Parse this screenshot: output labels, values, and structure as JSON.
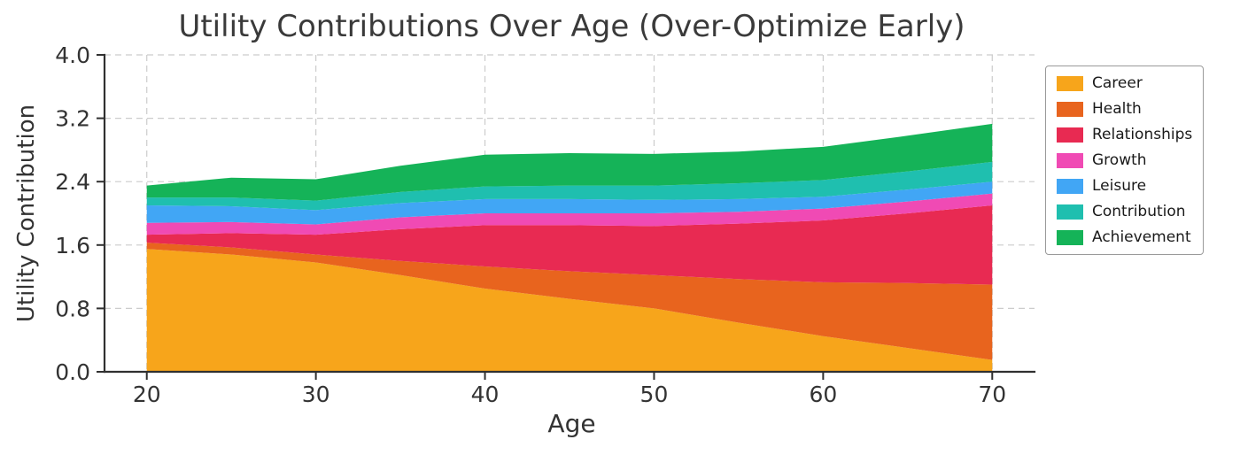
{
  "page": {
    "background": "#ffffff"
  },
  "chart_data": {
    "type": "area",
    "stacked": true,
    "title": "Utility Contributions Over Age (Over-Optimize Early)",
    "xlabel": "Age",
    "ylabel": "Utility Contribution",
    "grid": "dashed",
    "legend_position": "outside-right",
    "x": [
      20,
      25,
      30,
      35,
      40,
      45,
      50,
      55,
      60,
      65,
      70
    ],
    "xlim": [
      17.5,
      72.5
    ],
    "ylim": [
      0,
      4.0
    ],
    "xticks": [
      20,
      30,
      40,
      50,
      60,
      70
    ],
    "xtick_labels": [
      "20",
      "30",
      "40",
      "50",
      "60",
      "70"
    ],
    "yticks": [
      0,
      0.8,
      1.6,
      2.4,
      3.2,
      4.0
    ],
    "ytick_labels": [
      "0.0",
      "0.8",
      "1.6",
      "2.4",
      "3.2",
      "4.0"
    ],
    "series": [
      {
        "name": "Career",
        "color": "#F7A51B",
        "values": [
          1.55,
          1.48,
          1.38,
          1.22,
          1.05,
          0.92,
          0.8,
          0.62,
          0.45,
          0.3,
          0.15
        ]
      },
      {
        "name": "Health",
        "color": "#E8641E",
        "values": [
          0.08,
          0.09,
          0.1,
          0.18,
          0.28,
          0.35,
          0.42,
          0.55,
          0.68,
          0.82,
          0.95
        ]
      },
      {
        "name": "Relationships",
        "color": "#E82A52",
        "values": [
          0.1,
          0.18,
          0.25,
          0.4,
          0.52,
          0.58,
          0.62,
          0.7,
          0.78,
          0.88,
          1.0
        ]
      },
      {
        "name": "Growth",
        "color": "#F04AB4",
        "values": [
          0.15,
          0.14,
          0.13,
          0.15,
          0.15,
          0.15,
          0.16,
          0.15,
          0.15,
          0.15,
          0.15
        ]
      },
      {
        "name": "Leisure",
        "color": "#41A6F5",
        "values": [
          0.22,
          0.2,
          0.18,
          0.18,
          0.18,
          0.18,
          0.17,
          0.16,
          0.15,
          0.15,
          0.15
        ]
      },
      {
        "name": "Contribution",
        "color": "#1FBFAF",
        "values": [
          0.1,
          0.11,
          0.12,
          0.14,
          0.16,
          0.17,
          0.18,
          0.2,
          0.21,
          0.23,
          0.25
        ]
      },
      {
        "name": "Achievement",
        "color": "#15B358",
        "values": [
          0.15,
          0.25,
          0.27,
          0.33,
          0.4,
          0.41,
          0.4,
          0.4,
          0.42,
          0.45,
          0.48
        ]
      }
    ]
  }
}
